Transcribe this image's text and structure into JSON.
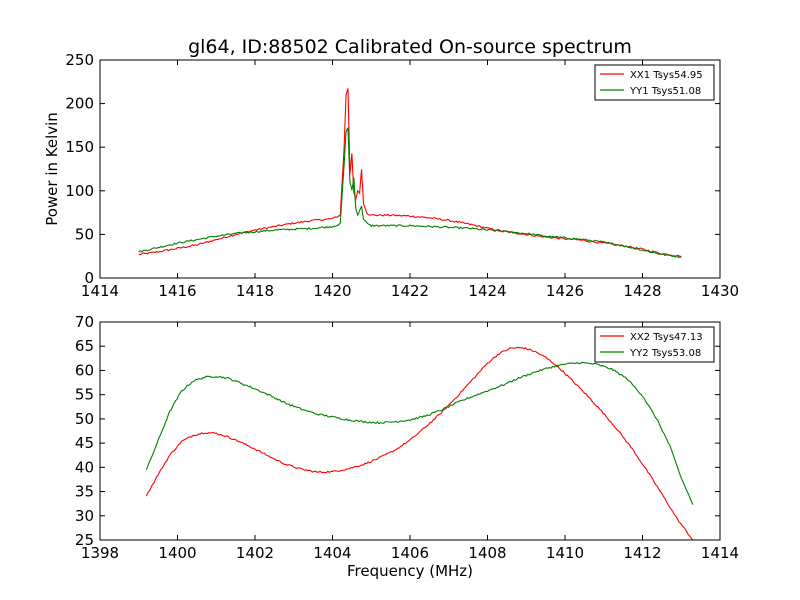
{
  "title": "gl64, ID:88502 Calibrated On-source spectrum",
  "chart_data": [
    {
      "type": "line",
      "ylabel": "Power in Kelvin",
      "xlabel": "",
      "xlim": [
        1414,
        1430
      ],
      "ylim": [
        0,
        250
      ],
      "xticks": [
        "1414",
        "1416",
        "1418",
        "1420",
        "1422",
        "1424",
        "1426",
        "1428",
        "1430"
      ],
      "yticks": [
        "0",
        "50",
        "100",
        "150",
        "200",
        "250"
      ],
      "grid": false,
      "legend": "top-right",
      "series": [
        {
          "name": "XX1 Tsys54.95",
          "color": "#ff0000",
          "points": [
            [
              1415.0,
              27
            ],
            [
              1415.5,
              30
            ],
            [
              1416.0,
              34
            ],
            [
              1416.5,
              38
            ],
            [
              1417.0,
              44
            ],
            [
              1417.5,
              50
            ],
            [
              1418.0,
              55
            ],
            [
              1418.5,
              59
            ],
            [
              1419.0,
              63
            ],
            [
              1419.5,
              66
            ],
            [
              1420.0,
              68
            ],
            [
              1420.2,
              72
            ],
            [
              1420.3,
              150
            ],
            [
              1420.35,
              210
            ],
            [
              1420.4,
              218
            ],
            [
              1420.45,
              120
            ],
            [
              1420.5,
              142
            ],
            [
              1420.55,
              98
            ],
            [
              1420.6,
              90
            ],
            [
              1420.65,
              100
            ],
            [
              1420.7,
              98
            ],
            [
              1420.75,
              125
            ],
            [
              1420.8,
              85
            ],
            [
              1420.9,
              74
            ],
            [
              1421.0,
              72
            ],
            [
              1421.5,
              72
            ],
            [
              1422.0,
              71
            ],
            [
              1422.5,
              69
            ],
            [
              1423.0,
              66
            ],
            [
              1423.5,
              62
            ],
            [
              1424.0,
              57
            ],
            [
              1424.5,
              53
            ],
            [
              1425.0,
              50
            ],
            [
              1425.5,
              47
            ],
            [
              1426.0,
              45
            ],
            [
              1426.5,
              43
            ],
            [
              1427.0,
              40
            ],
            [
              1427.5,
              37
            ],
            [
              1428.0,
              33
            ],
            [
              1428.5,
              28
            ],
            [
              1429.0,
              25
            ]
          ]
        },
        {
          "name": "YY1 Tsys51.08",
          "color": "#008000",
          "points": [
            [
              1415.0,
              30
            ],
            [
              1415.5,
              35
            ],
            [
              1416.0,
              40
            ],
            [
              1416.5,
              44
            ],
            [
              1417.0,
              48
            ],
            [
              1417.5,
              51
            ],
            [
              1418.0,
              53
            ],
            [
              1418.5,
              55
            ],
            [
              1419.0,
              56
            ],
            [
              1419.5,
              57
            ],
            [
              1420.0,
              59
            ],
            [
              1420.2,
              62
            ],
            [
              1420.3,
              130
            ],
            [
              1420.35,
              168
            ],
            [
              1420.4,
              172
            ],
            [
              1420.45,
              110
            ],
            [
              1420.5,
              100
            ],
            [
              1420.55,
              115
            ],
            [
              1420.6,
              80
            ],
            [
              1420.65,
              72
            ],
            [
              1420.7,
              78
            ],
            [
              1420.75,
              82
            ],
            [
              1420.8,
              68
            ],
            [
              1420.9,
              62
            ],
            [
              1421.0,
              60
            ],
            [
              1421.5,
              60
            ],
            [
              1422.0,
              60
            ],
            [
              1422.5,
              59
            ],
            [
              1423.0,
              58
            ],
            [
              1423.5,
              57
            ],
            [
              1424.0,
              55
            ],
            [
              1424.5,
              53
            ],
            [
              1425.0,
              51
            ],
            [
              1425.5,
              48
            ],
            [
              1426.0,
              46
            ],
            [
              1426.5,
              44
            ],
            [
              1427.0,
              41
            ],
            [
              1427.5,
              37
            ],
            [
              1428.0,
              32
            ],
            [
              1428.5,
              27
            ],
            [
              1429.0,
              24
            ]
          ]
        }
      ]
    },
    {
      "type": "line",
      "xlabel": "Frequency (MHz)",
      "ylabel": "",
      "xlim": [
        1398,
        1414
      ],
      "ylim": [
        25,
        70
      ],
      "xticks": [
        "1398",
        "1400",
        "1402",
        "1404",
        "1406",
        "1408",
        "1410",
        "1412",
        "1414"
      ],
      "yticks": [
        "25",
        "30",
        "35",
        "40",
        "45",
        "50",
        "55",
        "60",
        "65",
        "70"
      ],
      "grid": false,
      "legend": "top-right",
      "series": [
        {
          "name": "XX2 Tsys47.13",
          "color": "#ff0000",
          "points": [
            [
              1399.2,
              34.2
            ],
            [
              1399.5,
              38.5
            ],
            [
              1399.8,
              42.5
            ],
            [
              1400.1,
              45.3
            ],
            [
              1400.4,
              46.6
            ],
            [
              1400.7,
              47.2
            ],
            [
              1401.0,
              47.0
            ],
            [
              1401.3,
              46.3
            ],
            [
              1401.6,
              45.3
            ],
            [
              1402.0,
              43.8
            ],
            [
              1402.4,
              42.1
            ],
            [
              1402.8,
              40.6
            ],
            [
              1403.2,
              39.6
            ],
            [
              1403.6,
              39.0
            ],
            [
              1404.0,
              39.1
            ],
            [
              1404.4,
              39.7
            ],
            [
              1404.8,
              40.6
            ],
            [
              1405.2,
              41.9
            ],
            [
              1405.6,
              43.5
            ],
            [
              1406.0,
              45.6
            ],
            [
              1406.4,
              48.3
            ],
            [
              1406.8,
              51.2
            ],
            [
              1407.2,
              54.5
            ],
            [
              1407.6,
              58.0
            ],
            [
              1408.0,
              61.5
            ],
            [
              1408.3,
              63.5
            ],
            [
              1408.6,
              64.6
            ],
            [
              1408.9,
              64.7
            ],
            [
              1409.2,
              64.0
            ],
            [
              1409.5,
              62.7
            ],
            [
              1409.8,
              60.9
            ],
            [
              1410.1,
              58.6
            ],
            [
              1410.5,
              55.4
            ],
            [
              1410.9,
              52.0
            ],
            [
              1411.3,
              48.3
            ],
            [
              1411.7,
              44.2
            ],
            [
              1412.1,
              39.5
            ],
            [
              1412.5,
              34.5
            ],
            [
              1412.9,
              29.3
            ],
            [
              1413.3,
              25.0
            ]
          ]
        },
        {
          "name": "YY2 Tsys53.08",
          "color": "#008000",
          "points": [
            [
              1399.2,
              39.5
            ],
            [
              1399.5,
              45.5
            ],
            [
              1399.8,
              51.5
            ],
            [
              1400.1,
              55.7
            ],
            [
              1400.4,
              57.8
            ],
            [
              1400.7,
              58.6
            ],
            [
              1401.0,
              58.8
            ],
            [
              1401.3,
              58.4
            ],
            [
              1401.6,
              57.5
            ],
            [
              1402.0,
              56.2
            ],
            [
              1402.4,
              54.8
            ],
            [
              1402.8,
              53.2
            ],
            [
              1403.2,
              52.0
            ],
            [
              1403.6,
              51.0
            ],
            [
              1404.0,
              50.4
            ],
            [
              1404.4,
              49.8
            ],
            [
              1404.8,
              49.4
            ],
            [
              1405.2,
              49.2
            ],
            [
              1405.6,
              49.4
            ],
            [
              1406.0,
              49.8
            ],
            [
              1406.4,
              50.6
            ],
            [
              1406.8,
              51.8
            ],
            [
              1407.2,
              53.3
            ],
            [
              1407.6,
              54.6
            ],
            [
              1408.0,
              55.8
            ],
            [
              1408.4,
              57.0
            ],
            [
              1408.8,
              58.4
            ],
            [
              1409.2,
              59.6
            ],
            [
              1409.6,
              60.6
            ],
            [
              1410.0,
              61.3
            ],
            [
              1410.4,
              61.6
            ],
            [
              1410.8,
              61.3
            ],
            [
              1411.2,
              60.3
            ],
            [
              1411.6,
              58.3
            ],
            [
              1412.0,
              54.8
            ],
            [
              1412.4,
              49.5
            ],
            [
              1412.7,
              44.5
            ],
            [
              1413.0,
              37.8
            ],
            [
              1413.3,
              32.3
            ]
          ]
        }
      ]
    }
  ]
}
